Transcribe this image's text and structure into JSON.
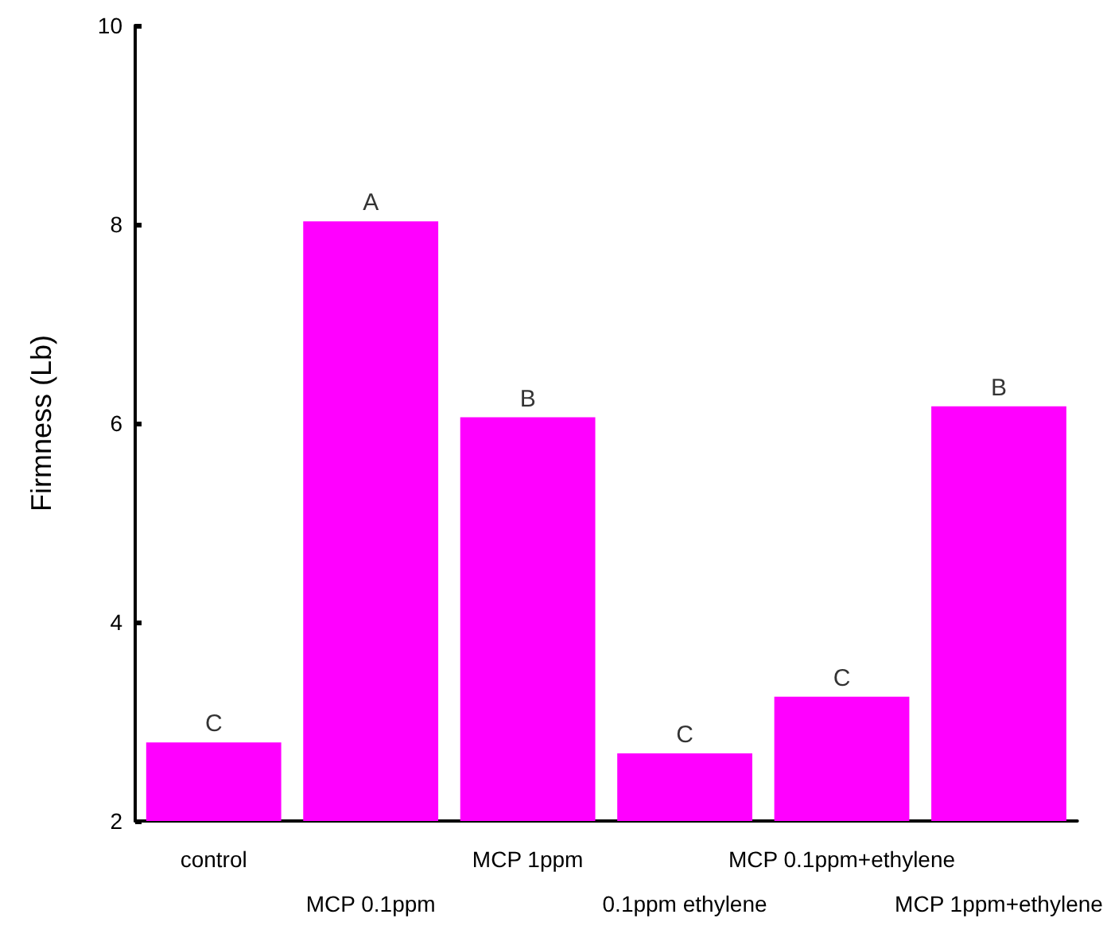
{
  "chart_data": {
    "type": "bar",
    "ylabel": "Firmness (Lb)",
    "categories": [
      "control",
      "MCP 0.1ppm",
      "MCP 1ppm",
      "0.1ppm ethylene",
      "MCP 0.1ppm+ethylene",
      "MCP 1ppm+ethylene"
    ],
    "values": [
      2.79,
      8.03,
      6.06,
      2.68,
      3.25,
      6.17
    ],
    "color": "#ff00ff",
    "ylim": [
      2,
      10
    ],
    "yticks": [
      2,
      4,
      6,
      8,
      10
    ],
    "grid": false,
    "annotations": [
      {
        "text": "C",
        "x": "control",
        "y": 2.79
      },
      {
        "text": "A",
        "x": "MCP 0.1ppm",
        "y": 8.03
      },
      {
        "text": "B",
        "x": "MCP 1ppm",
        "y": 6.06
      },
      {
        "text": "C",
        "x": "0.1ppm ethylene",
        "y": 2.68
      },
      {
        "text": "C",
        "x": "MCP 0.1ppm+ethylene",
        "y": 3.25
      },
      {
        "text": "B",
        "x": "MCP 1ppm+ethylene",
        "y": 6.17
      }
    ]
  }
}
